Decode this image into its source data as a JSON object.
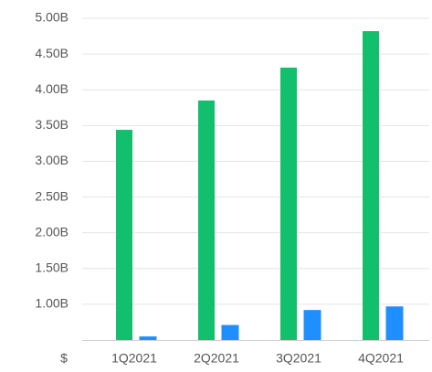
{
  "chart_data": {
    "type": "bar",
    "categories": [
      "1Q2021",
      "2Q2021",
      "3Q2021",
      "4Q2021"
    ],
    "series": [
      {
        "color": "#12bf6c",
        "values": [
          3.44,
          3.85,
          4.31,
          4.82
        ]
      },
      {
        "color": "#1f8fff",
        "values": [
          0.55,
          0.71,
          0.92,
          0.97
        ]
      }
    ],
    "y_unit_label": "$",
    "ylim": [
      0.5,
      5.0
    ],
    "yticks": [
      {
        "value": 1.0,
        "label": "1.00B"
      },
      {
        "value": 1.5,
        "label": "1.50B"
      },
      {
        "value": 2.0,
        "label": "2.00B"
      },
      {
        "value": 2.5,
        "label": "2.50B"
      },
      {
        "value": 3.0,
        "label": "3.00B"
      },
      {
        "value": 3.5,
        "label": "3.50B"
      },
      {
        "value": 4.0,
        "label": "4.00B"
      },
      {
        "value": 4.5,
        "label": "4.50B"
      },
      {
        "value": 5.0,
        "label": "5.00B"
      }
    ],
    "grid": true
  }
}
